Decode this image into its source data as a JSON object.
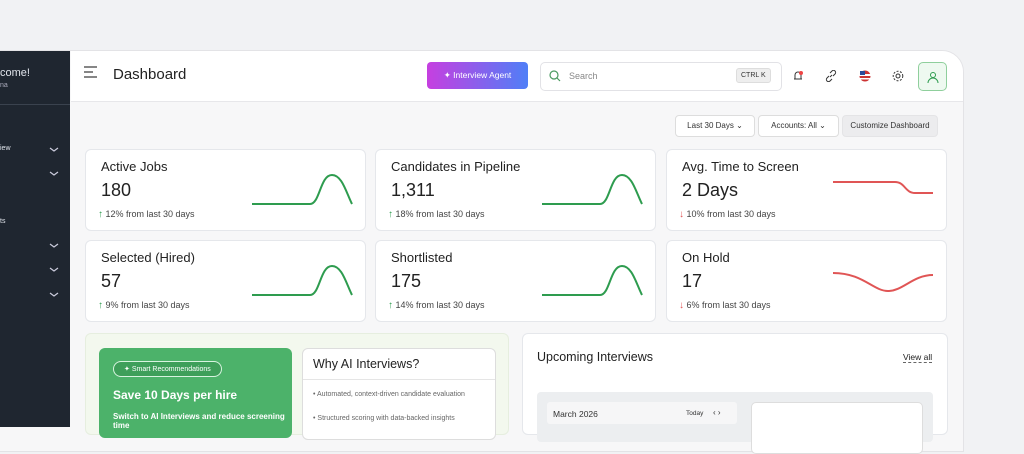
{
  "sidebar": {
    "greeting": "come!",
    "user": "na",
    "items": [
      "iew",
      "ts"
    ]
  },
  "header": {
    "title": "Dashboard",
    "agent_button": "Interview Agent",
    "search_placeholder": "Search",
    "shortcut": "CTRL K"
  },
  "filters": [
    "Last 30 Days",
    "Accounts: All",
    "Customize Dashboard"
  ],
  "cards": [
    {
      "title": "Active Jobs",
      "value": "180",
      "change": "12% from last 30 days",
      "trend": "up"
    },
    {
      "title": "Candidates in Pipeline",
      "value": "1,311",
      "change": "18% from last 30 days",
      "trend": "up"
    },
    {
      "title": "Avg. Time to Screen",
      "value": "2 Days",
      "change": "10% from last 30 days",
      "trend": "down"
    },
    {
      "title": "Selected (Hired)",
      "value": "57",
      "change": "9% from last 30 days",
      "trend": "up"
    },
    {
      "title": "Shortlisted",
      "value": "175",
      "change": "14% from last 30 days",
      "trend": "up"
    },
    {
      "title": "On Hold",
      "value": "17",
      "change": "6% from last 30 days",
      "trend": "down"
    }
  ],
  "recommendation": {
    "badge": "Smart Recommendations",
    "title": "Save 10 Days per hire",
    "text": "Switch to AI Interviews and reduce screening time"
  },
  "why": {
    "title": "Why AI Interviews?",
    "bullets": [
      "Automated, context-driven candidate evaluation",
      "Structured scoring with data-backed insights"
    ]
  },
  "upcoming": {
    "title": "Upcoming Interviews",
    "link": "View all",
    "month": "March 2026",
    "today": "Today"
  }
}
